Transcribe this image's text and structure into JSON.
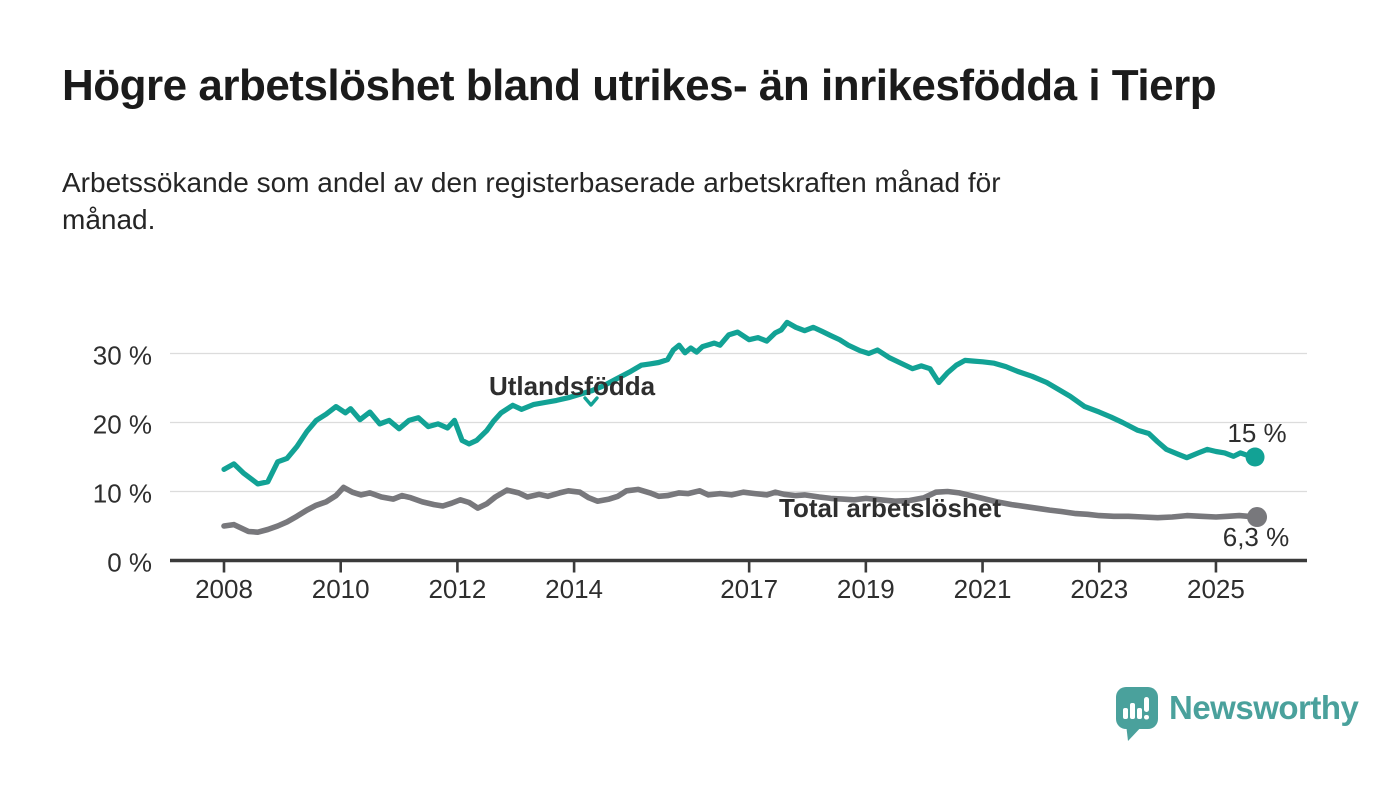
{
  "header": {
    "title": "Högre arbetslöshet bland utrikes- än inrikesfödda i Tierp",
    "subtitle_line1": "Arbetssökande som andel av den registerbaserade arbetskraften månad för",
    "subtitle_line2": "månad."
  },
  "branding": {
    "name": "Newsworthy",
    "color": "#4aa19c",
    "icon": "speech-bubble-bar-chart"
  },
  "chart_data": {
    "type": "line",
    "title": "Arbetssökande som andel av den registerbaserade arbetskraften månad för månad",
    "unit": "%",
    "grid": true,
    "y_axis": {
      "ticks": [
        0,
        10,
        20,
        30
      ],
      "tick_labels": [
        "0 %",
        "10 %",
        "20 %",
        "30 %"
      ],
      "range": [
        0,
        36
      ]
    },
    "x_axis": {
      "ticks": [
        2008,
        2010,
        2012,
        2014,
        2017,
        2019,
        2021,
        2023,
        2025
      ],
      "range_years": [
        2008,
        2025.67
      ]
    },
    "series": [
      {
        "name": "Utlandsfödda",
        "color": "#12a295",
        "end_label": "15 %",
        "end_value": 15,
        "points": [
          [
            2008.0,
            13.2
          ],
          [
            2008.17,
            14.0
          ],
          [
            2008.33,
            12.7
          ],
          [
            2008.58,
            11.1
          ],
          [
            2008.75,
            11.4
          ],
          [
            2008.92,
            14.3
          ],
          [
            2009.08,
            14.8
          ],
          [
            2009.25,
            16.5
          ],
          [
            2009.42,
            18.7
          ],
          [
            2009.58,
            20.3
          ],
          [
            2009.75,
            21.2
          ],
          [
            2009.92,
            22.3
          ],
          [
            2010.08,
            21.4
          ],
          [
            2010.17,
            22.0
          ],
          [
            2010.33,
            20.4
          ],
          [
            2010.5,
            21.5
          ],
          [
            2010.67,
            19.8
          ],
          [
            2010.83,
            20.3
          ],
          [
            2011.0,
            19.1
          ],
          [
            2011.17,
            20.3
          ],
          [
            2011.33,
            20.7
          ],
          [
            2011.5,
            19.4
          ],
          [
            2011.67,
            19.8
          ],
          [
            2011.83,
            19.2
          ],
          [
            2011.95,
            20.3
          ],
          [
            2012.08,
            17.4
          ],
          [
            2012.2,
            16.9
          ],
          [
            2012.33,
            17.4
          ],
          [
            2012.5,
            18.8
          ],
          [
            2012.62,
            20.2
          ],
          [
            2012.75,
            21.4
          ],
          [
            2012.95,
            22.5
          ],
          [
            2013.1,
            21.9
          ],
          [
            2013.3,
            22.6
          ],
          [
            2013.5,
            22.9
          ],
          [
            2013.7,
            23.2
          ],
          [
            2013.9,
            23.6
          ],
          [
            2014.1,
            24.1
          ],
          [
            2014.3,
            24.6
          ],
          [
            2014.5,
            25.3
          ],
          [
            2014.7,
            26.2
          ],
          [
            2014.95,
            27.3
          ],
          [
            2015.15,
            28.3
          ],
          [
            2015.3,
            28.5
          ],
          [
            2015.45,
            28.7
          ],
          [
            2015.6,
            29.1
          ],
          [
            2015.7,
            30.5
          ],
          [
            2015.8,
            31.2
          ],
          [
            2015.9,
            30.1
          ],
          [
            2016.0,
            30.8
          ],
          [
            2016.1,
            30.2
          ],
          [
            2016.2,
            31.0
          ],
          [
            2016.4,
            31.5
          ],
          [
            2016.5,
            31.2
          ],
          [
            2016.65,
            32.7
          ],
          [
            2016.8,
            33.1
          ],
          [
            2017.0,
            32.0
          ],
          [
            2017.15,
            32.3
          ],
          [
            2017.3,
            31.8
          ],
          [
            2017.45,
            33.0
          ],
          [
            2017.55,
            33.4
          ],
          [
            2017.65,
            34.5
          ],
          [
            2017.8,
            33.8
          ],
          [
            2017.95,
            33.3
          ],
          [
            2018.1,
            33.8
          ],
          [
            2018.25,
            33.2
          ],
          [
            2018.4,
            32.6
          ],
          [
            2018.55,
            32.0
          ],
          [
            2018.7,
            31.2
          ],
          [
            2018.9,
            30.4
          ],
          [
            2019.05,
            30.0
          ],
          [
            2019.2,
            30.5
          ],
          [
            2019.4,
            29.4
          ],
          [
            2019.6,
            28.6
          ],
          [
            2019.8,
            27.8
          ],
          [
            2019.95,
            28.2
          ],
          [
            2020.1,
            27.8
          ],
          [
            2020.25,
            25.8
          ],
          [
            2020.4,
            27.2
          ],
          [
            2020.55,
            28.3
          ],
          [
            2020.7,
            29.0
          ],
          [
            2020.85,
            28.9
          ],
          [
            2021.0,
            28.8
          ],
          [
            2021.2,
            28.6
          ],
          [
            2021.4,
            28.1
          ],
          [
            2021.6,
            27.4
          ],
          [
            2021.85,
            26.7
          ],
          [
            2022.1,
            25.8
          ],
          [
            2022.3,
            24.8
          ],
          [
            2022.5,
            23.8
          ],
          [
            2022.75,
            22.3
          ],
          [
            2023.0,
            21.5
          ],
          [
            2023.2,
            20.8
          ],
          [
            2023.4,
            20.0
          ],
          [
            2023.65,
            18.9
          ],
          [
            2023.85,
            18.4
          ],
          [
            2024.0,
            17.2
          ],
          [
            2024.15,
            16.1
          ],
          [
            2024.35,
            15.4
          ],
          [
            2024.5,
            14.9
          ],
          [
            2024.7,
            15.6
          ],
          [
            2024.85,
            16.1
          ],
          [
            2025.0,
            15.8
          ],
          [
            2025.15,
            15.6
          ],
          [
            2025.3,
            15.1
          ],
          [
            2025.42,
            15.6
          ],
          [
            2025.55,
            15.2
          ],
          [
            2025.67,
            15.0
          ]
        ]
      },
      {
        "name": "Total arbetslöshet",
        "color": "#78787c",
        "end_label": "6,3 %",
        "end_value": 6.3,
        "points": [
          [
            2008.0,
            5.0
          ],
          [
            2008.17,
            5.2
          ],
          [
            2008.42,
            4.2
          ],
          [
            2008.58,
            4.1
          ],
          [
            2008.75,
            4.5
          ],
          [
            2008.92,
            5.0
          ],
          [
            2009.08,
            5.6
          ],
          [
            2009.25,
            6.4
          ],
          [
            2009.42,
            7.3
          ],
          [
            2009.58,
            8.0
          ],
          [
            2009.75,
            8.5
          ],
          [
            2009.92,
            9.4
          ],
          [
            2010.05,
            10.6
          ],
          [
            2010.2,
            9.9
          ],
          [
            2010.35,
            9.5
          ],
          [
            2010.5,
            9.8
          ],
          [
            2010.7,
            9.2
          ],
          [
            2010.9,
            8.9
          ],
          [
            2011.05,
            9.4
          ],
          [
            2011.2,
            9.1
          ],
          [
            2011.4,
            8.5
          ],
          [
            2011.6,
            8.1
          ],
          [
            2011.75,
            7.9
          ],
          [
            2011.9,
            8.3
          ],
          [
            2012.05,
            8.8
          ],
          [
            2012.2,
            8.4
          ],
          [
            2012.35,
            7.6
          ],
          [
            2012.5,
            8.2
          ],
          [
            2012.65,
            9.2
          ],
          [
            2012.85,
            10.2
          ],
          [
            2013.05,
            9.8
          ],
          [
            2013.2,
            9.2
          ],
          [
            2013.4,
            9.6
          ],
          [
            2013.55,
            9.3
          ],
          [
            2013.75,
            9.8
          ],
          [
            2013.9,
            10.1
          ],
          [
            2014.1,
            9.9
          ],
          [
            2014.25,
            9.1
          ],
          [
            2014.4,
            8.6
          ],
          [
            2014.6,
            8.9
          ],
          [
            2014.75,
            9.3
          ],
          [
            2014.9,
            10.1
          ],
          [
            2015.1,
            10.3
          ],
          [
            2015.3,
            9.8
          ],
          [
            2015.45,
            9.3
          ],
          [
            2015.6,
            9.4
          ],
          [
            2015.8,
            9.8
          ],
          [
            2015.95,
            9.7
          ],
          [
            2016.15,
            10.1
          ],
          [
            2016.3,
            9.5
          ],
          [
            2016.5,
            9.7
          ],
          [
            2016.7,
            9.5
          ],
          [
            2016.9,
            9.9
          ],
          [
            2017.1,
            9.7
          ],
          [
            2017.3,
            9.5
          ],
          [
            2017.45,
            9.9
          ],
          [
            2017.6,
            9.6
          ],
          [
            2017.8,
            9.4
          ],
          [
            2017.95,
            9.5
          ],
          [
            2018.2,
            9.2
          ],
          [
            2018.4,
            9.0
          ],
          [
            2018.6,
            8.9
          ],
          [
            2018.8,
            8.8
          ],
          [
            2019.0,
            9.0
          ],
          [
            2019.25,
            8.8
          ],
          [
            2019.5,
            8.6
          ],
          [
            2019.75,
            8.7
          ],
          [
            2020.0,
            9.1
          ],
          [
            2020.2,
            9.9
          ],
          [
            2020.4,
            10.0
          ],
          [
            2020.6,
            9.8
          ],
          [
            2020.8,
            9.4
          ],
          [
            2021.0,
            9.0
          ],
          [
            2021.25,
            8.5
          ],
          [
            2021.5,
            8.1
          ],
          [
            2021.75,
            7.8
          ],
          [
            2022.0,
            7.5
          ],
          [
            2022.15,
            7.3
          ],
          [
            2022.35,
            7.1
          ],
          [
            2022.6,
            6.8
          ],
          [
            2022.8,
            6.7
          ],
          [
            2023.0,
            6.5
          ],
          [
            2023.25,
            6.4
          ],
          [
            2023.5,
            6.4
          ],
          [
            2023.75,
            6.3
          ],
          [
            2024.0,
            6.2
          ],
          [
            2024.25,
            6.3
          ],
          [
            2024.5,
            6.5
          ],
          [
            2024.75,
            6.4
          ],
          [
            2025.0,
            6.3
          ],
          [
            2025.2,
            6.4
          ],
          [
            2025.4,
            6.5
          ],
          [
            2025.55,
            6.4
          ],
          [
            2025.67,
            6.3
          ]
        ]
      }
    ],
    "annotations": {
      "series_label_1": "Utlandsfödda",
      "series_label_2": "Total arbetslöshet"
    }
  }
}
